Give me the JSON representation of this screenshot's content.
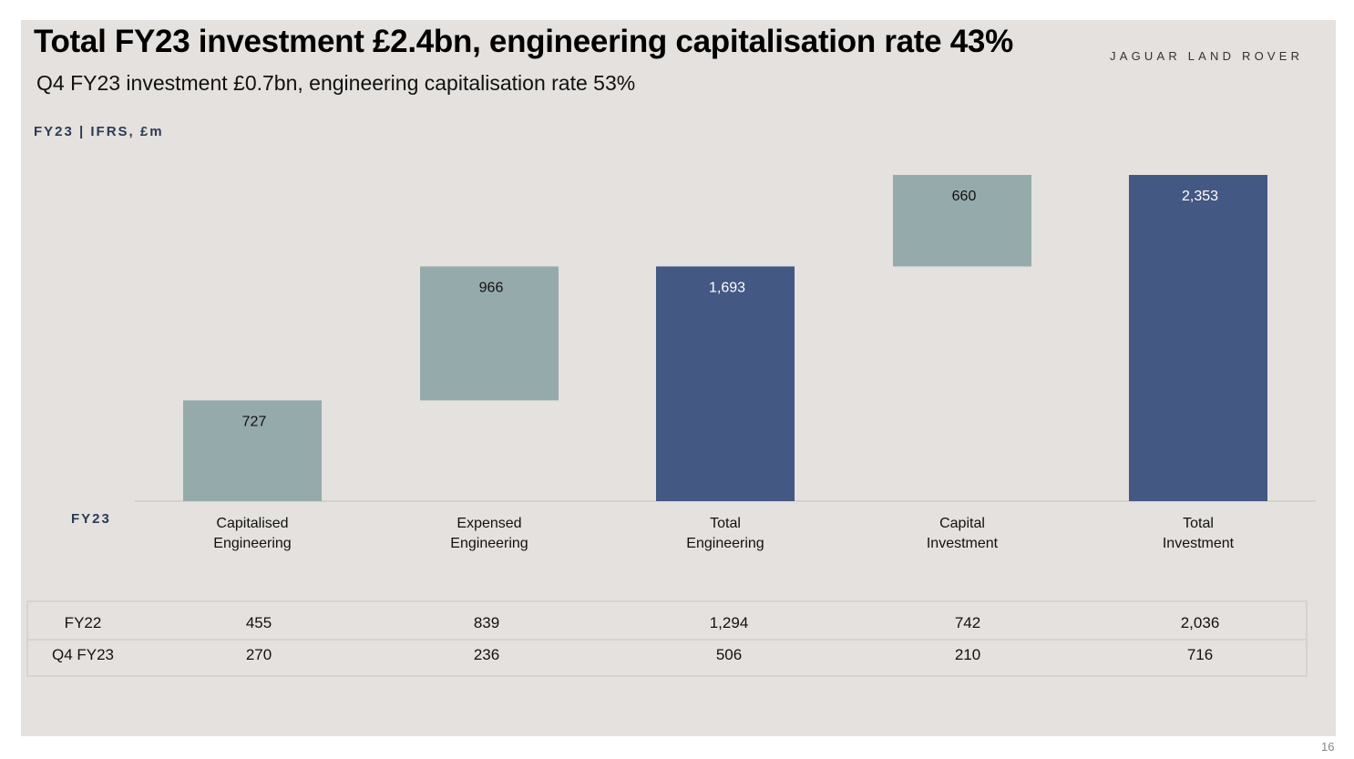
{
  "title": "Total FY23 investment £2.4bn, engineering capitalisation rate 43%",
  "subtitle": "Q4 FY23 investment £0.7bn, engineering capitalisation rate 53%",
  "logo_text": "JAGUAR LAND ROVER",
  "unit_label": "FY23 | IFRS, £m",
  "row_label": "FY23",
  "page_number": "16",
  "colors": {
    "step": "#95aaab",
    "total": "#435882",
    "background": "#e4e1de"
  },
  "chart_data": {
    "type": "bar",
    "subtype": "waterfall",
    "categories": [
      [
        "Capitalised",
        "Engineering"
      ],
      [
        "Expensed",
        "Engineering"
      ],
      [
        "Total",
        "Engineering"
      ],
      [
        "Capital",
        "Investment"
      ],
      [
        "Total",
        "Investment"
      ]
    ],
    "bars": [
      {
        "start": 0,
        "end": 727,
        "label": "727",
        "kind": "step"
      },
      {
        "start": 727,
        "end": 1693,
        "label": "966",
        "kind": "step"
      },
      {
        "start": 0,
        "end": 1693,
        "label": "1,693",
        "kind": "total"
      },
      {
        "start": 1693,
        "end": 2353,
        "label": "660",
        "kind": "step"
      },
      {
        "start": 0,
        "end": 2353,
        "label": "2,353",
        "kind": "total"
      }
    ],
    "ylim": [
      0,
      2353
    ]
  },
  "table": {
    "rows": [
      {
        "label": "FY22",
        "values": [
          "455",
          "839",
          "1,294",
          "742",
          "2,036"
        ]
      },
      {
        "label": "Q4 FY23",
        "values": [
          "270",
          "236",
          "506",
          "210",
          "716"
        ]
      }
    ]
  }
}
